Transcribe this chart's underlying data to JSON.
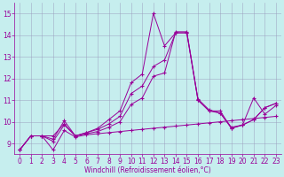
{
  "xlabel": "Windchill (Refroidissement éolien,°C)",
  "xlim": [
    -0.5,
    23.5
  ],
  "ylim": [
    8.5,
    15.5
  ],
  "yticks": [
    9,
    10,
    11,
    12,
    13,
    14,
    15
  ],
  "xticks": [
    0,
    1,
    2,
    3,
    4,
    5,
    6,
    7,
    8,
    9,
    10,
    11,
    12,
    13,
    14,
    15,
    16,
    17,
    18,
    19,
    20,
    21,
    22,
    23
  ],
  "bg_color": "#c6eeee",
  "grid_color": "#9999bb",
  "line_color": "#990099",
  "line1_x": [
    0,
    1,
    2,
    3,
    4,
    5,
    6,
    7,
    8,
    9,
    10,
    11,
    12,
    13,
    14,
    15,
    16,
    17,
    18,
    19,
    20,
    21,
    22,
    23
  ],
  "line1_y": [
    8.7,
    9.35,
    9.35,
    8.7,
    9.6,
    9.3,
    9.4,
    9.45,
    9.5,
    9.55,
    9.6,
    9.65,
    9.7,
    9.75,
    9.8,
    9.85,
    9.9,
    9.95,
    10.0,
    10.05,
    10.1,
    10.15,
    10.2,
    10.25
  ],
  "line2_x": [
    0,
    1,
    2,
    3,
    4,
    5,
    6,
    7,
    8,
    9,
    10,
    11,
    12,
    13,
    14,
    15,
    16,
    17,
    18,
    19,
    20,
    21,
    22,
    23
  ],
  "line2_y": [
    8.7,
    9.35,
    9.35,
    9.35,
    9.9,
    9.35,
    9.5,
    9.7,
    10.1,
    10.5,
    11.8,
    12.2,
    15.0,
    13.5,
    14.1,
    14.1,
    11.0,
    10.5,
    10.5,
    9.7,
    9.85,
    10.1,
    10.65,
    10.85
  ],
  "line3_x": [
    0,
    1,
    2,
    3,
    4,
    5,
    6,
    7,
    8,
    9,
    10,
    11,
    12,
    13,
    14,
    15,
    16,
    17,
    18,
    19,
    20,
    21,
    22,
    23
  ],
  "line3_y": [
    8.7,
    9.35,
    9.35,
    9.1,
    9.85,
    9.35,
    9.45,
    9.55,
    9.75,
    10.0,
    10.8,
    11.1,
    12.1,
    12.25,
    14.15,
    14.15,
    11.05,
    10.55,
    10.4,
    9.75,
    9.85,
    11.1,
    10.35,
    10.75
  ],
  "line4_x": [
    0,
    1,
    2,
    3,
    4,
    5,
    6,
    7,
    8,
    9,
    10,
    11,
    12,
    13,
    14,
    15,
    16,
    17,
    18,
    19,
    20,
    21,
    22,
    23
  ],
  "line4_y": [
    8.7,
    9.35,
    9.35,
    9.2,
    10.05,
    9.35,
    9.5,
    9.65,
    9.9,
    10.25,
    11.3,
    11.65,
    12.55,
    12.85,
    14.1,
    14.1,
    11.0,
    10.5,
    10.4,
    9.7,
    9.85,
    10.1,
    10.65,
    10.85
  ],
  "tick_fontsize": 5.5,
  "xlabel_fontsize": 5.5
}
